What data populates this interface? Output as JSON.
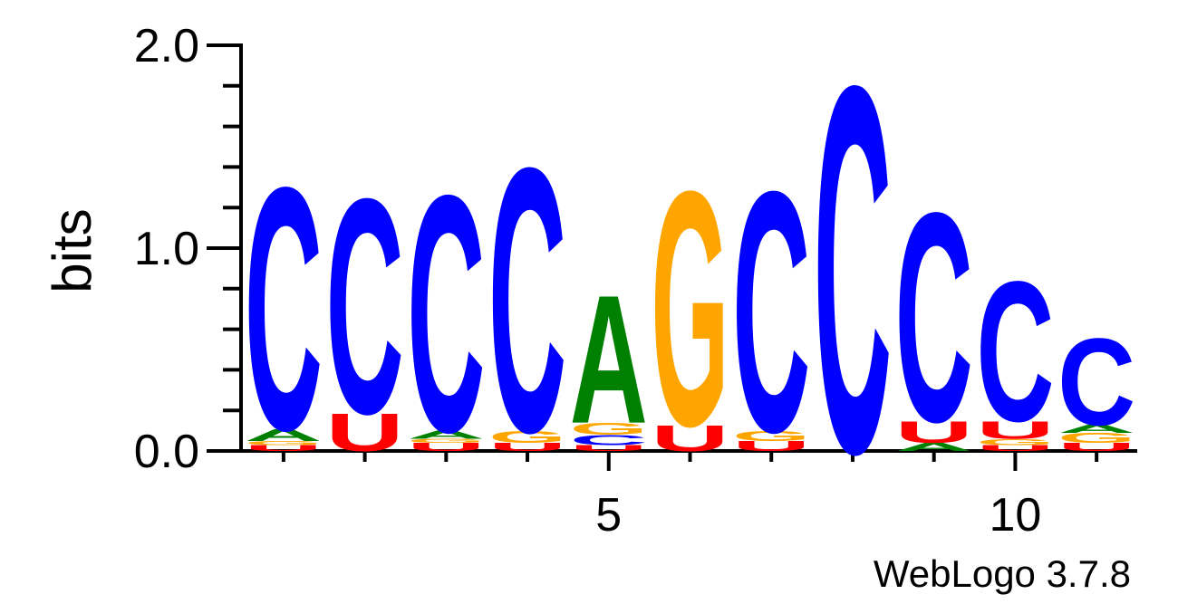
{
  "chart_data": {
    "type": "sequence-logo",
    "ylabel": "bits",
    "ylim": [
      0,
      2.0
    ],
    "yticks": [
      "0.0",
      "1.0",
      "2.0"
    ],
    "xticks": [
      {
        "position": 5,
        "label": "5"
      },
      {
        "position": 10,
        "label": "10"
      }
    ],
    "colors": {
      "A": "#008000",
      "C": "#0000ff",
      "G": "#ffa500",
      "U": "#ff0000"
    },
    "positions": [
      {
        "position": 1,
        "stack": [
          {
            "letter": "U",
            "bits": 0.03
          },
          {
            "letter": "G",
            "bits": 0.02
          },
          {
            "letter": "A",
            "bits": 0.06
          },
          {
            "letter": "C",
            "bits": 1.23
          }
        ]
      },
      {
        "position": 2,
        "stack": [
          {
            "letter": "U",
            "bits": 0.19
          },
          {
            "letter": "C",
            "bits": 1.09
          }
        ]
      },
      {
        "position": 3,
        "stack": [
          {
            "letter": "U",
            "bits": 0.04
          },
          {
            "letter": "G",
            "bits": 0.02
          },
          {
            "letter": "A",
            "bits": 0.04
          },
          {
            "letter": "C",
            "bits": 1.2
          }
        ]
      },
      {
        "position": 4,
        "stack": [
          {
            "letter": "U",
            "bits": 0.04
          },
          {
            "letter": "G",
            "bits": 0.06
          },
          {
            "letter": "C",
            "bits": 1.34
          }
        ]
      },
      {
        "position": 5,
        "stack": [
          {
            "letter": "U",
            "bits": 0.03
          },
          {
            "letter": "C",
            "bits": 0.05
          },
          {
            "letter": "G",
            "bits": 0.06
          },
          {
            "letter": "A",
            "bits": 0.65
          }
        ]
      },
      {
        "position": 6,
        "stack": [
          {
            "letter": "U",
            "bits": 0.13
          },
          {
            "letter": "G",
            "bits": 1.19
          }
        ]
      },
      {
        "position": 7,
        "stack": [
          {
            "letter": "U",
            "bits": 0.05
          },
          {
            "letter": "G",
            "bits": 0.05
          },
          {
            "letter": "C",
            "bits": 1.22
          }
        ]
      },
      {
        "position": 8,
        "stack": [
          {
            "letter": "C",
            "bits": 1.86
          }
        ]
      },
      {
        "position": 9,
        "stack": [
          {
            "letter": "A",
            "bits": 0.04
          },
          {
            "letter": "U",
            "bits": 0.11
          },
          {
            "letter": "C",
            "bits": 1.06
          }
        ]
      },
      {
        "position": 10,
        "stack": [
          {
            "letter": "U",
            "bits": 0.03
          },
          {
            "letter": "G",
            "bits": 0.03
          },
          {
            "letter": "U",
            "bits": 0.09
          },
          {
            "letter": "C",
            "bits": 0.71
          }
        ]
      },
      {
        "position": 11,
        "stack": [
          {
            "letter": "U",
            "bits": 0.04
          },
          {
            "letter": "G",
            "bits": 0.05
          },
          {
            "letter": "A",
            "bits": 0.04
          },
          {
            "letter": "C",
            "bits": 0.44
          }
        ]
      }
    ]
  },
  "credit": "WebLogo 3.7.8"
}
